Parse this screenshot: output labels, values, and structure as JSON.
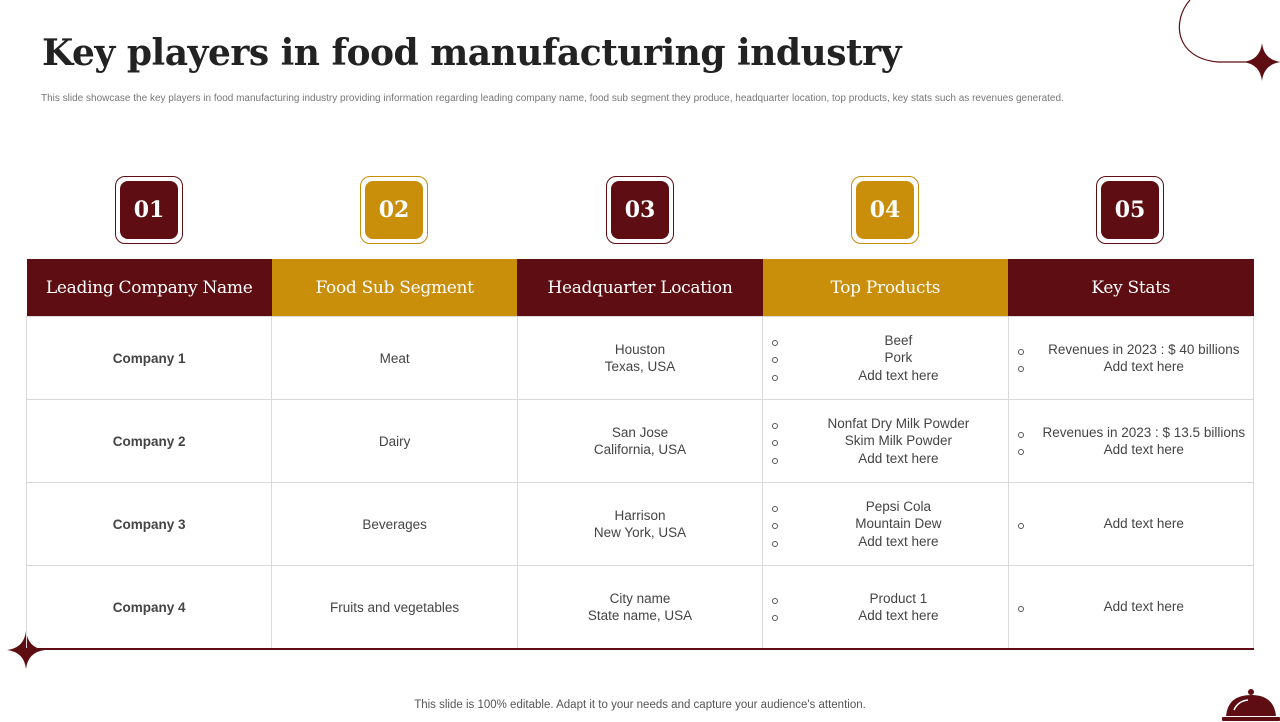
{
  "slide": {
    "title": "Key players in food manufacturing industry",
    "subtitle": "This slide showcase the key players in food manufacturing industry providing information regarding leading company name, food sub segment they produce, headquarter location, top products, key stats such as revenues generated.",
    "footer": "This slide is 100% editable. Adapt it to your needs and capture your audience's attention."
  },
  "badges": [
    "01",
    "02",
    "03",
    "04",
    "05"
  ],
  "table": {
    "headers": [
      "Leading Company Name",
      "Food Sub Segment",
      "Headquarter Location",
      "Top Products",
      "Key Stats"
    ],
    "rows": [
      {
        "company": "Company 1",
        "segment": "Meat",
        "hq": [
          "Houston",
          "Texas, USA"
        ],
        "products": [
          "Beef",
          "Pork",
          "Add text here"
        ],
        "stats": [
          "Revenues in 2023 : $ 40 billions",
          "Add text here"
        ]
      },
      {
        "company": "Company 2",
        "segment": "Dairy",
        "hq": [
          "San Jose",
          "California, USA"
        ],
        "products": [
          "Nonfat Dry Milk Powder",
          "Skim Milk Powder",
          "Add text here"
        ],
        "stats": [
          "Revenues in 2023 : $ 13.5 billions",
          "Add text here"
        ]
      },
      {
        "company": "Company 3",
        "segment": "Beverages",
        "hq": [
          "Harrison",
          "New York, USA"
        ],
        "products": [
          "Pepsi Cola",
          "Mountain Dew",
          "Add text here"
        ],
        "stats": [
          "Add text here"
        ]
      },
      {
        "company": "Company 4",
        "segment": "Fruits and vegetables",
        "hq": [
          "City name",
          "State name, USA"
        ],
        "products": [
          "Product 1",
          "Add text here"
        ],
        "stats": [
          "Add text here"
        ]
      }
    ]
  },
  "colors": {
    "maroon": "#5e0e12",
    "gold": "#c98e0a"
  },
  "icons": [
    "sparkle-star-icon",
    "cloche-icon"
  ]
}
